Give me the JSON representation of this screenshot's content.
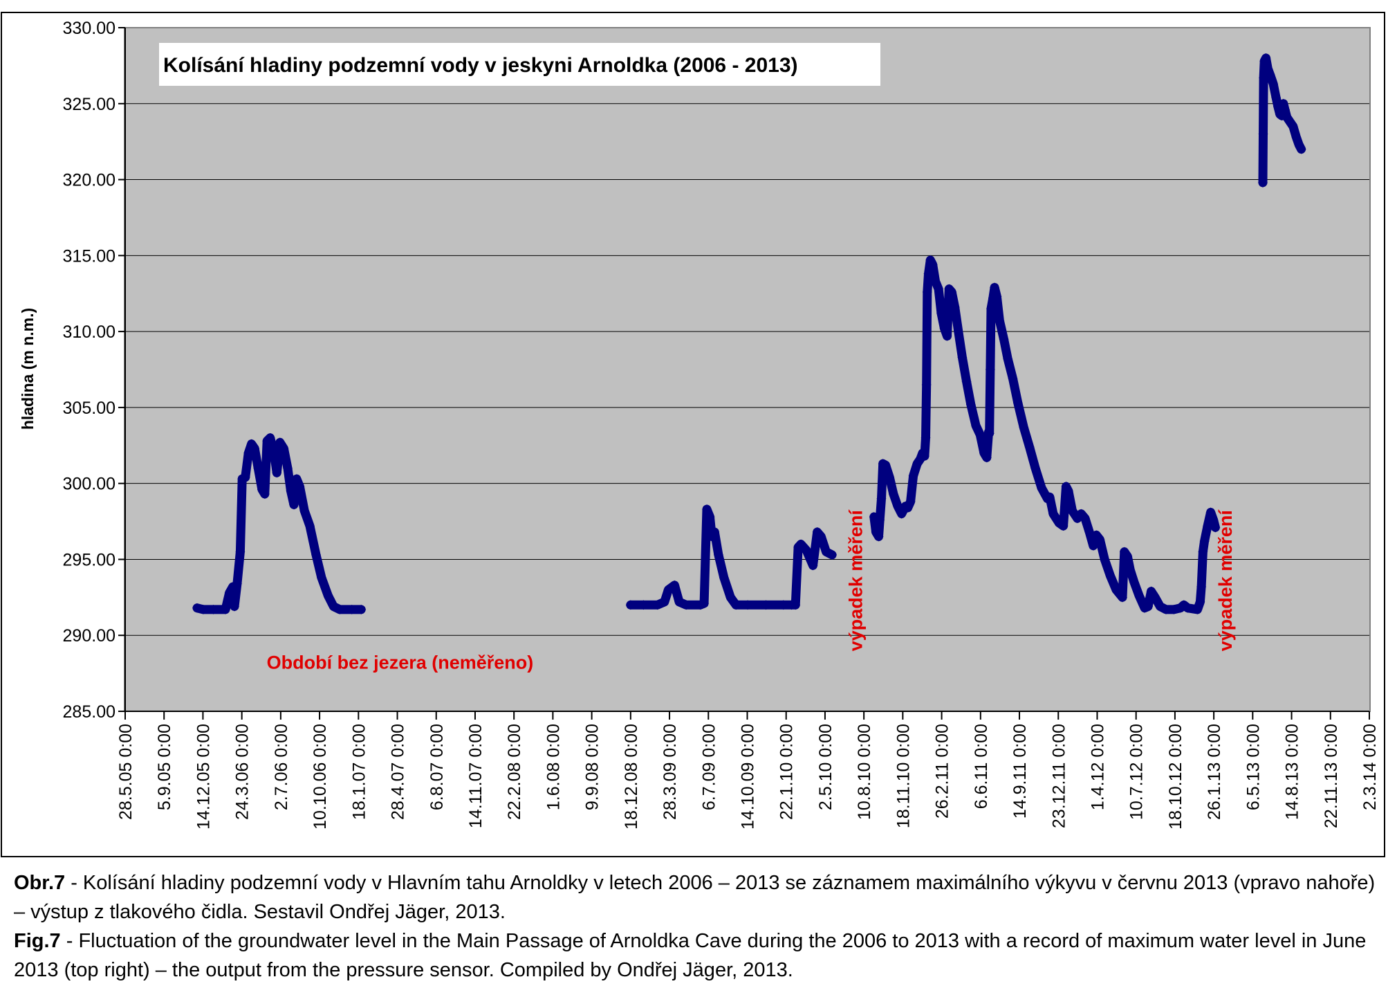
{
  "chart_data": {
    "type": "line",
    "title": "Kolísání hladiny podzemní vody v jeskyni Arnoldka  (2006 - 2013)",
    "ylabel": "hladina (m n.m.)",
    "xlabel": "",
    "ylim": [
      285,
      330
    ],
    "xlim": [
      "2005-05-28",
      "2014-03-02"
    ],
    "grid": true,
    "y_ticks": [
      "330.00",
      "325.00",
      "320.00",
      "315.00",
      "310.00",
      "305.00",
      "300.00",
      "295.00",
      "290.00",
      "285.00"
    ],
    "x_ticks": [
      "28.5.05 0:00",
      "5.9.05 0:00",
      "14.12.05 0:00",
      "24.3.06 0:00",
      "2.7.06 0:00",
      "10.10.06 0:00",
      "18.1.07 0:00",
      "28.4.07 0:00",
      "6.8.07 0:00",
      "14.11.07 0:00",
      "22.2.08 0:00",
      "1.6.08 0:00",
      "9.9.08 0:00",
      "18.12.08 0:00",
      "28.3.09 0:00",
      "6.7.09 0:00",
      "14.10.09 0:00",
      "22.1.10 0:00",
      "2.5.10 0:00",
      "10.8.10 0:00",
      "18.11.10 0:00",
      "26.2.11 0:00",
      "6.6.11 0:00",
      "14.9.11 0:00",
      "23.12.11 0:00",
      "1.4.12 0:00",
      "10.7.12 0:00",
      "18.10.12 0:00",
      "26.1.13 0:00",
      "6.5.13 0:00",
      "14.8.13 0:00",
      "22.11.13 0:00",
      "2.3.14 0:00"
    ],
    "annotations": [
      {
        "text": "Období bez jezera (neměřeno)",
        "x": "2007-05-05",
        "y": 287.8,
        "rotation": 0
      },
      {
        "text": "výpadek měření",
        "x": "2010-08-05",
        "y": 293.6,
        "rotation": -90
      },
      {
        "text": "výpadek měření",
        "x": "2013-03-13",
        "y": 293.6,
        "rotation": -90
      }
    ],
    "series": [
      {
        "color": "#00007f",
        "segments": [
          [
            [
              "2005-11-29",
              291.8
            ],
            [
              "2005-12-15",
              291.7
            ],
            [
              "2006-01-10",
              291.7
            ],
            [
              "2006-02-10",
              291.7
            ],
            [
              "2006-02-20",
              292.8
            ],
            [
              "2006-03-01",
              293.2
            ],
            [
              "2006-03-05",
              291.9
            ],
            [
              "2006-03-12",
              293.4
            ],
            [
              "2006-03-20",
              295.5
            ],
            [
              "2006-03-25",
              300.3
            ],
            [
              "2006-04-02",
              300.4
            ],
            [
              "2006-04-10",
              302.0
            ],
            [
              "2006-04-18",
              302.6
            ],
            [
              "2006-04-26",
              302.3
            ],
            [
              "2006-05-05",
              301.0
            ],
            [
              "2006-05-15",
              299.6
            ],
            [
              "2006-05-22",
              299.3
            ],
            [
              "2006-05-28",
              302.8
            ],
            [
              "2006-06-05",
              303.0
            ],
            [
              "2006-06-15",
              302.0
            ],
            [
              "2006-06-22",
              300.7
            ],
            [
              "2006-06-30",
              302.7
            ],
            [
              "2006-07-10",
              302.3
            ],
            [
              "2006-07-20",
              301.0
            ],
            [
              "2006-07-28",
              299.5
            ],
            [
              "2006-08-05",
              298.6
            ],
            [
              "2006-08-12",
              300.3
            ],
            [
              "2006-08-20",
              299.8
            ],
            [
              "2006-09-01",
              298.2
            ],
            [
              "2006-09-15",
              297.2
            ],
            [
              "2006-10-01",
              295.3
            ],
            [
              "2006-10-15",
              293.8
            ],
            [
              "2006-11-01",
              292.6
            ],
            [
              "2006-11-15",
              291.9
            ],
            [
              "2006-12-01",
              291.7
            ],
            [
              "2007-01-01",
              291.7
            ],
            [
              "2007-01-25",
              291.7
            ]
          ],
          [
            [
              "2008-12-18",
              292.0
            ],
            [
              "2009-01-20",
              292.0
            ],
            [
              "2009-02-25",
              292.0
            ],
            [
              "2009-03-15",
              292.2
            ],
            [
              "2009-03-25",
              293.0
            ],
            [
              "2009-04-10",
              293.3
            ],
            [
              "2009-04-22",
              292.2
            ],
            [
              "2009-05-10",
              292.0
            ],
            [
              "2009-06-15",
              292.0
            ],
            [
              "2009-06-25",
              292.1
            ],
            [
              "2009-07-02",
              298.3
            ],
            [
              "2009-07-10",
              297.8
            ],
            [
              "2009-07-15",
              296.5
            ],
            [
              "2009-07-22",
              296.8
            ],
            [
              "2009-08-01",
              295.3
            ],
            [
              "2009-08-15",
              293.8
            ],
            [
              "2009-09-01",
              292.5
            ],
            [
              "2009-09-15",
              292.0
            ],
            [
              "2009-10-15",
              292.0
            ],
            [
              "2009-12-01",
              292.0
            ],
            [
              "2010-01-15",
              292.0
            ],
            [
              "2010-02-05",
              292.0
            ],
            [
              "2010-02-15",
              292.0
            ],
            [
              "2010-02-22",
              295.8
            ],
            [
              "2010-03-01",
              296.0
            ],
            [
              "2010-03-15",
              295.6
            ],
            [
              "2010-04-01",
              294.6
            ],
            [
              "2010-04-12",
              296.8
            ],
            [
              "2010-04-22",
              296.5
            ],
            [
              "2010-05-05",
              295.5
            ],
            [
              "2010-05-20",
              295.3
            ]
          ],
          [
            [
              "2010-09-05",
              297.8
            ],
            [
              "2010-09-10",
              296.8
            ],
            [
              "2010-09-17",
              296.5
            ],
            [
              "2010-09-20",
              297.6
            ],
            [
              "2010-09-24",
              299.0
            ],
            [
              "2010-09-28",
              301.3
            ],
            [
              "2010-10-05",
              301.2
            ],
            [
              "2010-10-15",
              300.4
            ],
            [
              "2010-10-25",
              299.3
            ],
            [
              "2010-11-05",
              298.5
            ],
            [
              "2010-11-15",
              298.0
            ],
            [
              "2010-11-25",
              298.5
            ],
            [
              "2010-12-01",
              298.4
            ],
            [
              "2010-12-08",
              298.8
            ],
            [
              "2010-12-15",
              300.5
            ],
            [
              "2010-12-25",
              301.3
            ],
            [
              "2011-01-02",
              301.6
            ],
            [
              "2011-01-08",
              302.0
            ],
            [
              "2011-01-13",
              301.8
            ],
            [
              "2011-01-16",
              303.0
            ],
            [
              "2011-01-18",
              306.5
            ],
            [
              "2011-01-20",
              312.6
            ],
            [
              "2011-01-23",
              313.8
            ],
            [
              "2011-01-28",
              314.7
            ],
            [
              "2011-02-03",
              314.4
            ],
            [
              "2011-02-10",
              313.3
            ],
            [
              "2011-02-18",
              312.8
            ],
            [
              "2011-02-25",
              311.2
            ],
            [
              "2011-03-05",
              310.2
            ],
            [
              "2011-03-12",
              309.7
            ],
            [
              "2011-03-17",
              312.8
            ],
            [
              "2011-03-24",
              312.6
            ],
            [
              "2011-04-01",
              311.6
            ],
            [
              "2011-04-10",
              310.0
            ],
            [
              "2011-04-20",
              308.3
            ],
            [
              "2011-05-01",
              306.7
            ],
            [
              "2011-05-12",
              305.2
            ],
            [
              "2011-05-25",
              303.8
            ],
            [
              "2011-06-05",
              303.2
            ],
            [
              "2011-06-15",
              302.0
            ],
            [
              "2011-06-22",
              301.7
            ],
            [
              "2011-06-27",
              303.4
            ],
            [
              "2011-06-29",
              303.3
            ],
            [
              "2011-07-01",
              307.5
            ],
            [
              "2011-07-03",
              311.5
            ],
            [
              "2011-07-08",
              312.2
            ],
            [
              "2011-07-12",
              312.9
            ],
            [
              "2011-07-18",
              312.3
            ],
            [
              "2011-07-25",
              310.7
            ],
            [
              "2011-08-05",
              309.5
            ],
            [
              "2011-08-15",
              308.2
            ],
            [
              "2011-08-28",
              306.9
            ],
            [
              "2011-09-10",
              305.3
            ],
            [
              "2011-09-25",
              303.7
            ],
            [
              "2011-10-10",
              302.4
            ],
            [
              "2011-10-25",
              301.0
            ],
            [
              "2011-11-10",
              299.7
            ],
            [
              "2011-11-25",
              299.0
            ],
            [
              "2011-12-01",
              299.1
            ],
            [
              "2011-12-10",
              298.0
            ],
            [
              "2011-12-25",
              297.4
            ],
            [
              "2012-01-05",
              297.2
            ],
            [
              "2012-01-12",
              299.8
            ],
            [
              "2012-01-18",
              299.5
            ],
            [
              "2012-01-28",
              298.2
            ],
            [
              "2012-02-10",
              297.7
            ],
            [
              "2012-02-20",
              298.0
            ],
            [
              "2012-03-01",
              297.7
            ],
            [
              "2012-03-12",
              296.8
            ],
            [
              "2012-03-22",
              295.9
            ],
            [
              "2012-03-30",
              296.6
            ],
            [
              "2012-04-08",
              296.3
            ],
            [
              "2012-04-20",
              295.0
            ],
            [
              "2012-05-05",
              293.9
            ],
            [
              "2012-05-20",
              293.0
            ],
            [
              "2012-06-05",
              292.5
            ],
            [
              "2012-06-10",
              295.5
            ],
            [
              "2012-06-18",
              295.2
            ],
            [
              "2012-06-25",
              294.3
            ],
            [
              "2012-07-05",
              293.5
            ],
            [
              "2012-07-18",
              292.6
            ],
            [
              "2012-08-01",
              291.8
            ],
            [
              "2012-08-10",
              291.9
            ],
            [
              "2012-08-18",
              292.9
            ],
            [
              "2012-08-28",
              292.5
            ],
            [
              "2012-09-10",
              291.9
            ],
            [
              "2012-09-25",
              291.7
            ],
            [
              "2012-10-15",
              291.7
            ],
            [
              "2012-11-01",
              291.8
            ],
            [
              "2012-11-10",
              292.0
            ],
            [
              "2012-11-20",
              291.8
            ],
            [
              "2012-12-15",
              291.7
            ],
            [
              "2012-12-22",
              292.2
            ],
            [
              "2012-12-25",
              293.2
            ],
            [
              "2012-12-29",
              295.5
            ],
            [
              "2013-01-02",
              296.2
            ],
            [
              "2013-01-10",
              297.2
            ],
            [
              "2013-01-18",
              298.1
            ],
            [
              "2013-01-25",
              297.6
            ],
            [
              "2013-01-30",
              297.1
            ]
          ],
          [
            [
              "2013-06-01",
              319.8
            ],
            [
              "2013-06-02",
              323.0
            ],
            [
              "2013-06-03",
              326.7
            ],
            [
              "2013-06-05",
              327.8
            ],
            [
              "2013-06-09",
              328.0
            ],
            [
              "2013-06-14",
              327.3
            ],
            [
              "2013-06-20",
              326.9
            ],
            [
              "2013-06-28",
              326.3
            ],
            [
              "2013-07-05",
              325.4
            ],
            [
              "2013-07-10",
              324.8
            ],
            [
              "2013-07-15",
              324.3
            ],
            [
              "2013-07-20",
              324.2
            ],
            [
              "2013-07-24",
              325.0
            ],
            [
              "2013-07-28",
              324.6
            ],
            [
              "2013-08-02",
              324.1
            ],
            [
              "2013-08-10",
              323.8
            ],
            [
              "2013-08-18",
              323.5
            ],
            [
              "2013-08-26",
              322.8
            ],
            [
              "2013-09-02",
              322.3
            ],
            [
              "2013-09-08",
              322.0
            ]
          ]
        ]
      }
    ]
  },
  "caption": {
    "cz_prefix": "Obr.7",
    "cz_text": " - Kolísání hladiny podzemní vody v Hlavním tahu Arnoldky v letech 2006 – 2013 se záznamem maximálního výkyvu v červnu 2013 (vpravo nahoře) – výstup z tlakového čidla. Sestavil Ondřej Jäger, 2013.",
    "en_prefix": "Fig.7",
    "en_text": " - Fluctuation of the groundwater level in the Main Passage of Arnoldka Cave during the 2006 to 2013 with a record of maximum water level in June 2013 (top right) – the output from the pressure sensor. Compiled by Ondřej Jäger, 2013."
  }
}
